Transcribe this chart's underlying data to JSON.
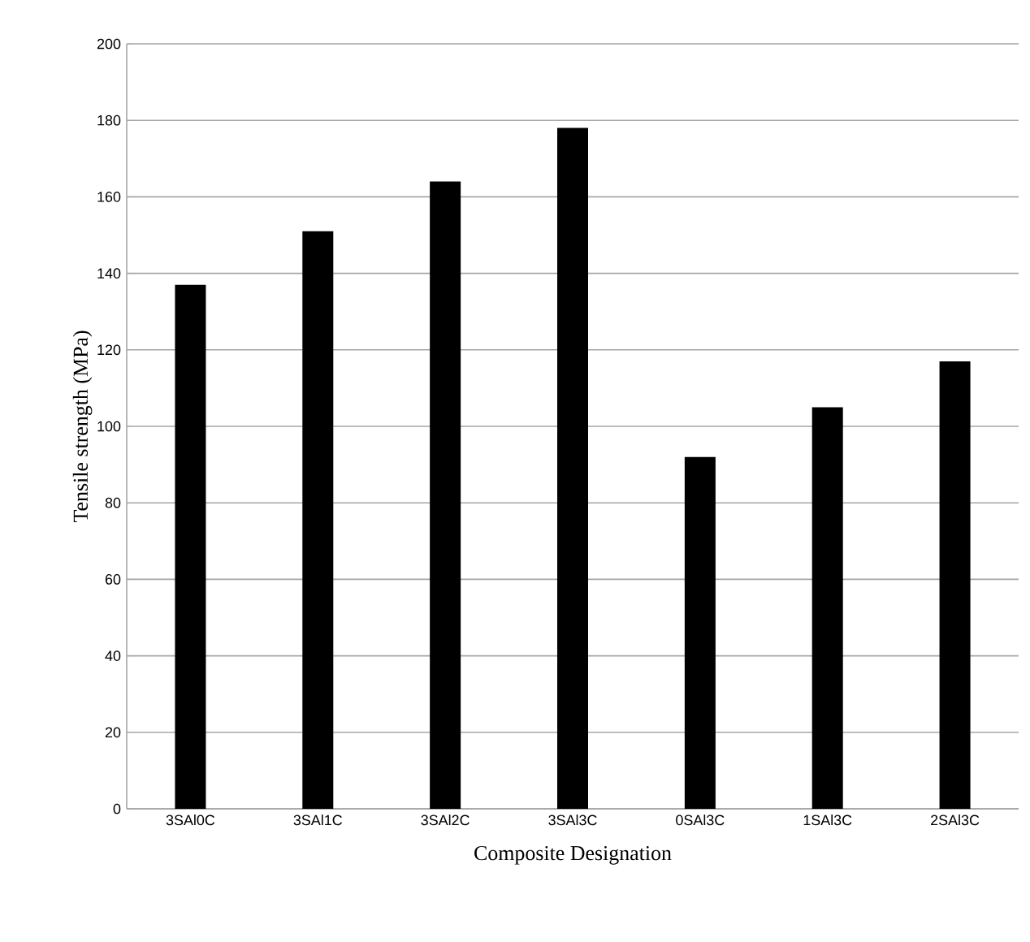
{
  "chart_data": {
    "type": "bar",
    "xlabel": "Composite Designation",
    "ylabel": "Tensile strength  (MPa)",
    "categories": [
      "3SAl0C",
      "3SAl1C",
      "3SAl2C",
      "3SAl3C",
      "0SAl3C",
      "1SAl3C",
      "2SAl3C"
    ],
    "values": [
      137,
      151,
      164,
      178,
      92,
      105,
      117
    ],
    "color": "#000000",
    "ylim": [
      0,
      200
    ],
    "yticks": [
      0,
      20,
      40,
      60,
      80,
      100,
      120,
      140,
      160,
      180,
      200
    ],
    "grid": "y"
  }
}
